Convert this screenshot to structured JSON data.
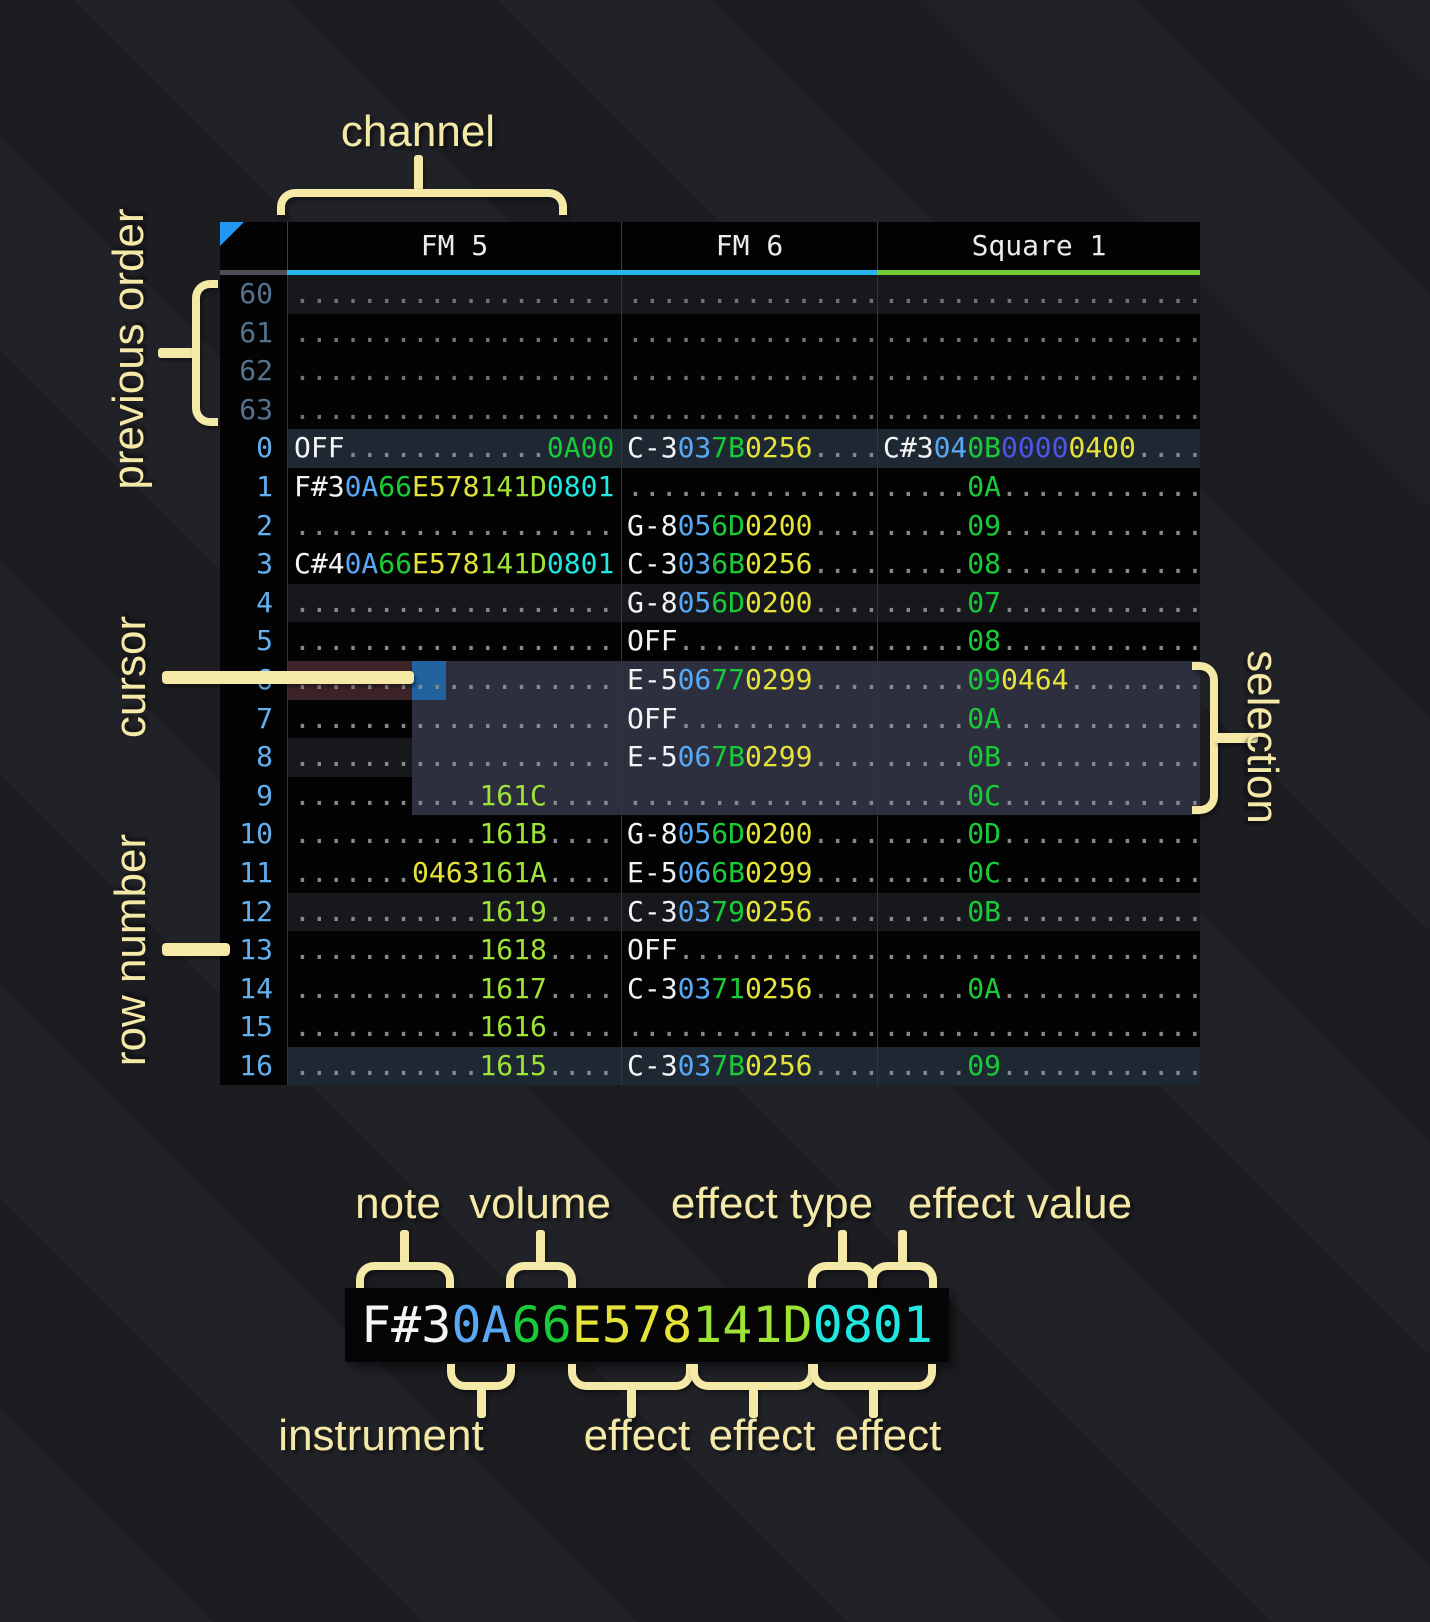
{
  "annotations": {
    "channel": "channel",
    "previous_order": "previous order",
    "cursor": "cursor",
    "row_number": "row number",
    "selection": "selection"
  },
  "legend": {
    "labels": {
      "note": "note",
      "volume": "volume",
      "effect_type": "effect type",
      "effect_value": "effect value",
      "instrument": "instrument",
      "effect": "effect"
    },
    "cell": [
      [
        "F#3",
        "n"
      ],
      [
        "0A",
        "i"
      ],
      [
        "66",
        "v"
      ],
      [
        "E578",
        "e"
      ],
      [
        "141D",
        "l"
      ],
      [
        "0801",
        "c"
      ]
    ]
  },
  "colors": {
    "annotation": "#f5e9a8",
    "cursor": "#20639e",
    "selection": "#2d2f3e",
    "cursor_row_note": "#3c2328",
    "channel_underline_fm": "#29b5ef",
    "channel_underline_square": "#72cc33",
    "note": "#f5f5f5",
    "instrument": "#58a8f5",
    "volume": "#17cc38",
    "effect_yellow": "#e5e23a",
    "effect_lime": "#9ee336",
    "effect_cyan": "#20e8e0",
    "effect_blue": "#4d55e8"
  },
  "tracker": {
    "corner": "++",
    "channels": [
      {
        "name": "FM 5",
        "underline": "#29b5ef"
      },
      {
        "name": "FM 6",
        "underline": "#29b5ef"
      },
      {
        "name": "Square 1",
        "underline": "#72cc33"
      }
    ],
    "rows": [
      {
        "num": "60",
        "cls": "prev hl4",
        "c5": [
          [
            "...................",
            "d"
          ]
        ],
        "c6": [
          [
            "...............",
            "d"
          ]
        ],
        "c1": [
          [
            "...................",
            "d"
          ]
        ]
      },
      {
        "num": "61",
        "cls": "prev",
        "c5": [
          [
            "...................",
            "d"
          ]
        ],
        "c6": [
          [
            "...............",
            "d"
          ]
        ],
        "c1": [
          [
            "...................",
            "d"
          ]
        ]
      },
      {
        "num": "62",
        "cls": "prev",
        "c5": [
          [
            "...................",
            "d"
          ]
        ],
        "c6": [
          [
            "...............",
            "d"
          ]
        ],
        "c1": [
          [
            "...................",
            "d"
          ]
        ]
      },
      {
        "num": "63",
        "cls": "prev",
        "c5": [
          [
            "...................",
            "d"
          ]
        ],
        "c6": [
          [
            "...............",
            "d"
          ]
        ],
        "c1": [
          [
            "...................",
            "d"
          ]
        ]
      },
      {
        "num": "0",
        "cls": "hl16",
        "c5": [
          [
            "OFF",
            "n"
          ],
          [
            "............",
            "d"
          ],
          [
            "0A00",
            "v"
          ]
        ],
        "c6": [
          [
            "C-3",
            "n"
          ],
          [
            "03",
            "i"
          ],
          [
            "7B",
            "v"
          ],
          [
            "0256",
            "e"
          ],
          [
            "....",
            "d"
          ]
        ],
        "c1": [
          [
            "C#3",
            "n"
          ],
          [
            "04",
            "i"
          ],
          [
            "0B",
            "v"
          ],
          [
            "0000",
            "b"
          ],
          [
            "0400",
            "e"
          ],
          [
            "....",
            "d"
          ]
        ]
      },
      {
        "num": "1",
        "cls": "",
        "c5": [
          [
            "F#3",
            "n"
          ],
          [
            "0A",
            "i"
          ],
          [
            "66",
            "v"
          ],
          [
            "E578",
            "e"
          ],
          [
            "141D",
            "l"
          ],
          [
            "0801",
            "c"
          ]
        ],
        "c6": [
          [
            "...............",
            "d"
          ]
        ],
        "c1": [
          [
            ".....",
            "d"
          ],
          [
            "0A",
            "v"
          ],
          [
            "............",
            "d"
          ]
        ]
      },
      {
        "num": "2",
        "cls": "",
        "c5": [
          [
            "...................",
            "d"
          ]
        ],
        "c6": [
          [
            "G-8",
            "n"
          ],
          [
            "05",
            "i"
          ],
          [
            "6D",
            "v"
          ],
          [
            "0200",
            "e"
          ],
          [
            "....",
            "d"
          ]
        ],
        "c1": [
          [
            ".....",
            "d"
          ],
          [
            "09",
            "v"
          ],
          [
            "............",
            "d"
          ]
        ]
      },
      {
        "num": "3",
        "cls": "",
        "c5": [
          [
            "C#4",
            "n"
          ],
          [
            "0A",
            "i"
          ],
          [
            "66",
            "v"
          ],
          [
            "E578",
            "e"
          ],
          [
            "141D",
            "l"
          ],
          [
            "0801",
            "c"
          ]
        ],
        "c6": [
          [
            "C-3",
            "n"
          ],
          [
            "03",
            "i"
          ],
          [
            "6B",
            "v"
          ],
          [
            "0256",
            "e"
          ],
          [
            "....",
            "d"
          ]
        ],
        "c1": [
          [
            ".....",
            "d"
          ],
          [
            "08",
            "v"
          ],
          [
            "............",
            "d"
          ]
        ]
      },
      {
        "num": "4",
        "cls": "hl4",
        "c5": [
          [
            "...................",
            "d"
          ]
        ],
        "c6": [
          [
            "G-8",
            "n"
          ],
          [
            "05",
            "i"
          ],
          [
            "6D",
            "v"
          ],
          [
            "0200",
            "e"
          ],
          [
            "....",
            "d"
          ]
        ],
        "c1": [
          [
            ".....",
            "d"
          ],
          [
            "07",
            "v"
          ],
          [
            "............",
            "d"
          ]
        ]
      },
      {
        "num": "5",
        "cls": "",
        "c5": [
          [
            "...................",
            "d"
          ]
        ],
        "c6": [
          [
            "OFF",
            "n"
          ],
          [
            "............",
            "d"
          ]
        ],
        "c1": [
          [
            ".....",
            "d"
          ],
          [
            "08",
            "v"
          ],
          [
            "............",
            "d"
          ]
        ]
      },
      {
        "num": "6",
        "cls": "",
        "bg5": "cur5",
        "bg6": "selbg",
        "bg1": "selbg",
        "c5": [
          [
            "...................",
            "d"
          ]
        ],
        "c6": [
          [
            "E-5",
            "n"
          ],
          [
            "06",
            "i"
          ],
          [
            "77",
            "v"
          ],
          [
            "0299",
            "e"
          ],
          [
            "....",
            "d"
          ]
        ],
        "c1": [
          [
            ".....",
            "d"
          ],
          [
            "09",
            "v"
          ],
          [
            "0464",
            "e"
          ],
          [
            "........",
            "d"
          ]
        ]
      },
      {
        "num": "7",
        "cls": "",
        "bg5": "sel5",
        "bg6": "selbg",
        "bg1": "selbg",
        "c5": [
          [
            "...................",
            "d"
          ]
        ],
        "c6": [
          [
            "OFF",
            "n"
          ],
          [
            "............",
            "d"
          ]
        ],
        "c1": [
          [
            ".....",
            "d"
          ],
          [
            "0A",
            "v"
          ],
          [
            "............",
            "d"
          ]
        ]
      },
      {
        "num": "8",
        "cls": "hl4",
        "bg5": "sel5",
        "bg6": "selbg",
        "bg1": "selbg",
        "c5": [
          [
            "...................",
            "d"
          ]
        ],
        "c6": [
          [
            "E-5",
            "n"
          ],
          [
            "06",
            "i"
          ],
          [
            "7B",
            "v"
          ],
          [
            "0299",
            "e"
          ],
          [
            "....",
            "d"
          ]
        ],
        "c1": [
          [
            ".....",
            "d"
          ],
          [
            "0B",
            "v"
          ],
          [
            "............",
            "d"
          ]
        ]
      },
      {
        "num": "9",
        "cls": "",
        "bg5": "sel5",
        "bg6": "selbg",
        "bg1": "selbg",
        "c5": [
          [
            "...........",
            "d"
          ],
          [
            "161C",
            "l"
          ],
          [
            "....",
            "d"
          ]
        ],
        "c6": [
          [
            "...............",
            "d"
          ]
        ],
        "c1": [
          [
            ".....",
            "d"
          ],
          [
            "0C",
            "v"
          ],
          [
            "............",
            "d"
          ]
        ]
      },
      {
        "num": "10",
        "cls": "",
        "c5": [
          [
            "...........",
            "d"
          ],
          [
            "161B",
            "l"
          ],
          [
            "....",
            "d"
          ]
        ],
        "c6": [
          [
            "G-8",
            "n"
          ],
          [
            "05",
            "i"
          ],
          [
            "6D",
            "v"
          ],
          [
            "0200",
            "e"
          ],
          [
            "....",
            "d"
          ]
        ],
        "c1": [
          [
            ".....",
            "d"
          ],
          [
            "0D",
            "v"
          ],
          [
            "............",
            "d"
          ]
        ]
      },
      {
        "num": "11",
        "cls": "",
        "c5": [
          [
            ".......",
            "d"
          ],
          [
            "0463",
            "e"
          ],
          [
            "161A",
            "l"
          ],
          [
            "....",
            "d"
          ]
        ],
        "c6": [
          [
            "E-5",
            "n"
          ],
          [
            "06",
            "i"
          ],
          [
            "6B",
            "v"
          ],
          [
            "0299",
            "e"
          ],
          [
            "....",
            "d"
          ]
        ],
        "c1": [
          [
            ".....",
            "d"
          ],
          [
            "0C",
            "v"
          ],
          [
            "............",
            "d"
          ]
        ]
      },
      {
        "num": "12",
        "cls": "hl4",
        "c5": [
          [
            "...........",
            "d"
          ],
          [
            "1619",
            "l"
          ],
          [
            "....",
            "d"
          ]
        ],
        "c6": [
          [
            "C-3",
            "n"
          ],
          [
            "03",
            "i"
          ],
          [
            "79",
            "v"
          ],
          [
            "0256",
            "e"
          ],
          [
            "....",
            "d"
          ]
        ],
        "c1": [
          [
            ".....",
            "d"
          ],
          [
            "0B",
            "v"
          ],
          [
            "............",
            "d"
          ]
        ]
      },
      {
        "num": "13",
        "cls": "",
        "c5": [
          [
            "...........",
            "d"
          ],
          [
            "1618",
            "l"
          ],
          [
            "....",
            "d"
          ]
        ],
        "c6": [
          [
            "OFF",
            "n"
          ],
          [
            "............",
            "d"
          ]
        ],
        "c1": [
          [
            "...................",
            "d"
          ]
        ]
      },
      {
        "num": "14",
        "cls": "",
        "c5": [
          [
            "...........",
            "d"
          ],
          [
            "1617",
            "l"
          ],
          [
            "....",
            "d"
          ]
        ],
        "c6": [
          [
            "C-3",
            "n"
          ],
          [
            "03",
            "i"
          ],
          [
            "71",
            "v"
          ],
          [
            "0256",
            "e"
          ],
          [
            "....",
            "d"
          ]
        ],
        "c1": [
          [
            ".....",
            "d"
          ],
          [
            "0A",
            "v"
          ],
          [
            "............",
            "d"
          ]
        ]
      },
      {
        "num": "15",
        "cls": "",
        "c5": [
          [
            "...........",
            "d"
          ],
          [
            "1616",
            "l"
          ],
          [
            "....",
            "d"
          ]
        ],
        "c6": [
          [
            "...............",
            "d"
          ]
        ],
        "c1": [
          [
            "...................",
            "d"
          ]
        ]
      },
      {
        "num": "16",
        "cls": "hl16",
        "c5": [
          [
            "...........",
            "d"
          ],
          [
            "1615",
            "l"
          ],
          [
            "....",
            "d"
          ]
        ],
        "c6": [
          [
            "C-3",
            "n"
          ],
          [
            "03",
            "i"
          ],
          [
            "7B",
            "v"
          ],
          [
            "0256",
            "e"
          ],
          [
            "....",
            "d"
          ]
        ],
        "c1": [
          [
            ".....",
            "d"
          ],
          [
            "09",
            "v"
          ],
          [
            "............",
            "d"
          ]
        ]
      }
    ]
  }
}
